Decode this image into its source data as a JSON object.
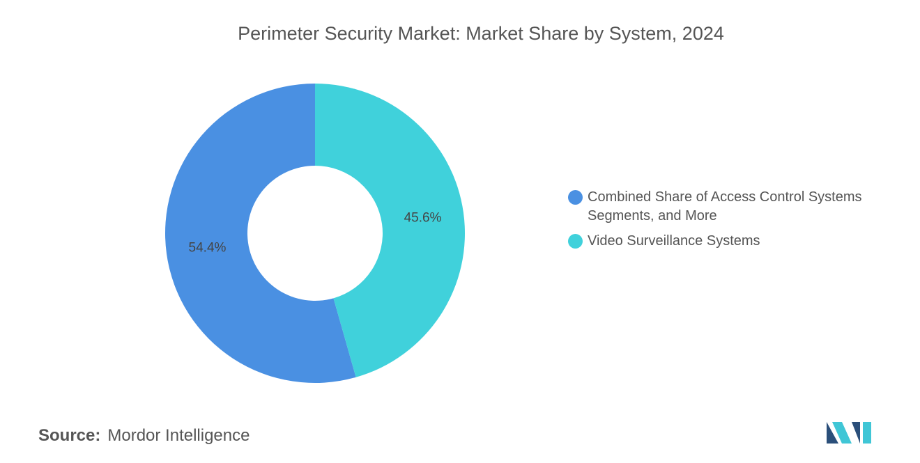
{
  "chart_data": {
    "type": "donut",
    "title": "Perimeter Security Market: Market Share by System, 2024",
    "categories": [
      "Combined Share of Access Control Systems Segments, and More",
      "Video Surveillance Systems"
    ],
    "values": [
      54.4,
      45.6
    ],
    "value_labels": [
      "54.4%",
      "45.6%"
    ],
    "colors": [
      "#4a90e2",
      "#40d1db"
    ],
    "legend": "right"
  },
  "source": {
    "label": "Source:",
    "text": "Mordor Intelligence"
  }
}
